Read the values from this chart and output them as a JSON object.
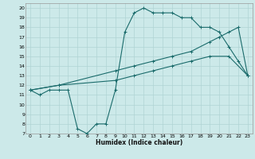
{
  "title": "",
  "xlabel": "Humidex (Indice chaleur)",
  "background_color": "#cce9e9",
  "grid_color": "#b0d4d4",
  "line_color": "#1a6b6b",
  "xlim": [
    -0.5,
    23.5
  ],
  "ylim": [
    7,
    20.5
  ],
  "xticks": [
    0,
    1,
    2,
    3,
    4,
    5,
    6,
    7,
    8,
    9,
    10,
    11,
    12,
    13,
    14,
    15,
    16,
    17,
    18,
    19,
    20,
    21,
    22,
    23
  ],
  "yticks": [
    7,
    8,
    9,
    10,
    11,
    12,
    13,
    14,
    15,
    16,
    17,
    18,
    19,
    20
  ],
  "line1_x": [
    0,
    1,
    2,
    3,
    4,
    5,
    6,
    7,
    8,
    9,
    10,
    11,
    12,
    13,
    14,
    15,
    16,
    17,
    18,
    19,
    20,
    21,
    22,
    23
  ],
  "line1_y": [
    11.5,
    11.0,
    11.5,
    11.5,
    11.5,
    7.5,
    7.0,
    8.0,
    8.0,
    11.5,
    17.5,
    19.5,
    20.0,
    19.5,
    19.5,
    19.5,
    19.0,
    19.0,
    18.0,
    18.0,
    17.5,
    16.0,
    14.5,
    13.0
  ],
  "line2_x": [
    0,
    3,
    9,
    11,
    13,
    15,
    17,
    19,
    20,
    21,
    22,
    23
  ],
  "line2_y": [
    11.5,
    12.0,
    13.5,
    14.0,
    14.5,
    15.0,
    15.5,
    16.5,
    17.0,
    17.5,
    18.0,
    13.0
  ],
  "line3_x": [
    0,
    3,
    9,
    11,
    13,
    15,
    17,
    19,
    21,
    23
  ],
  "line3_y": [
    11.5,
    12.0,
    12.5,
    13.0,
    13.5,
    14.0,
    14.5,
    15.0,
    15.0,
    13.0
  ]
}
